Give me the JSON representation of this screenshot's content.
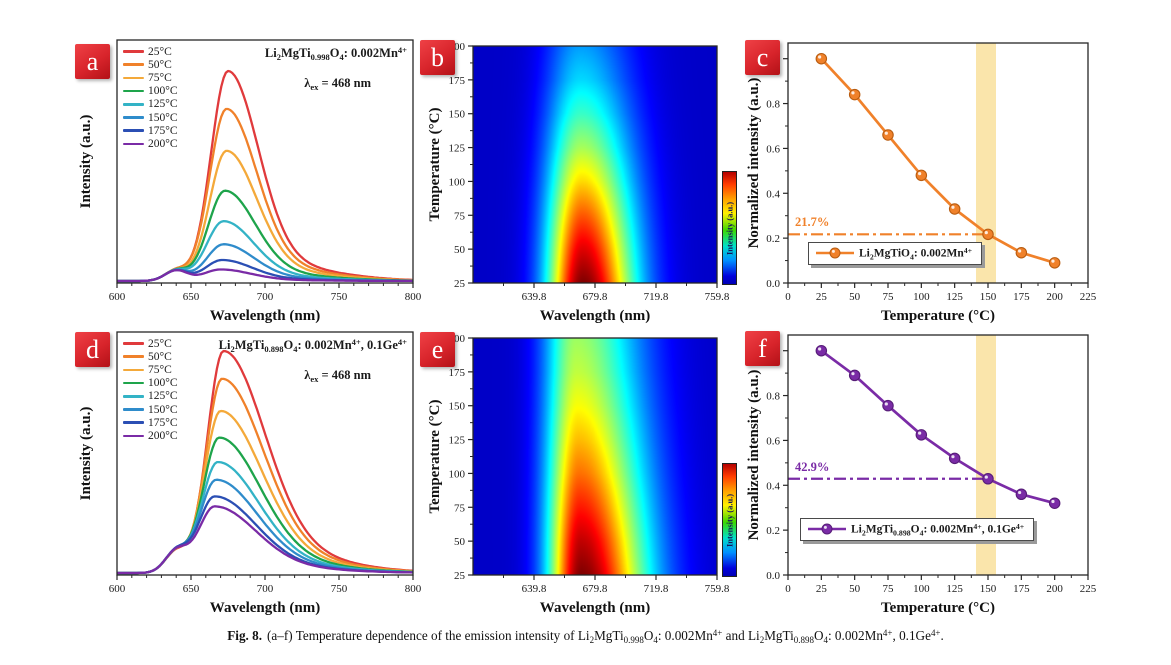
{
  "page": {
    "background": "#ffffff"
  },
  "caption": {
    "prefix": "Fig. 8.",
    "body": "(a–f) Temperature dependence of the emission intensity of Li~2~MgTi~0.998~O~4~: 0.002Mn^4+^ and Li~2~MgTi~0.898~O~4~: 0.002Mn^4+^, 0.1Ge^4+^."
  },
  "colors": {
    "panel_badge_red": "#d8242b",
    "accent_orange": "#f0812a",
    "accent_purple": "#7a2ba6",
    "highlight_band": "#fae5ab",
    "heatmap_background_blue": "#0000c8"
  },
  "chart_data": [
    {
      "id": "a",
      "type": "line",
      "panel_label": "a",
      "annotation_formula": "Li~2~MgTi~0.998~O~4~: 0.002Mn^4+^",
      "annotation_excitation": "λ~ex~ = 468 nm",
      "xlabel": "Wavelength (nm)",
      "ylabel": "Intensity (a.u.)",
      "xlim": [
        600,
        800
      ],
      "xticks": [
        600,
        650,
        700,
        750,
        800
      ],
      "series": [
        {
          "label": "25°C",
          "color": "#e03a3c",
          "peak_nm": 675,
          "rel_intensity": 1.0
        },
        {
          "label": "50°C",
          "color": "#f0812a",
          "peak_nm": 674,
          "rel_intensity": 0.82
        },
        {
          "label": "75°C",
          "color": "#f4a93a",
          "peak_nm": 674,
          "rel_intensity": 0.62
        },
        {
          "label": "100°C",
          "color": "#1ea44b",
          "peak_nm": 673,
          "rel_intensity": 0.43
        },
        {
          "label": "125°C",
          "color": "#33b3c6",
          "peak_nm": 672,
          "rel_intensity": 0.285
        },
        {
          "label": "150°C",
          "color": "#2f8ccb",
          "peak_nm": 672,
          "rel_intensity": 0.175
        },
        {
          "label": "175°C",
          "color": "#2b4fb4",
          "peak_nm": 671,
          "rel_intensity": 0.1
        },
        {
          "label": "200°C",
          "color": "#7a2ba6",
          "peak_nm": 670,
          "rel_intensity": 0.055
        }
      ]
    },
    {
      "id": "b",
      "type": "heatmap",
      "panel_label": "b",
      "xlabel": "Wavelength (nm)",
      "ylabel": "Temperature (°C)",
      "xlim": [
        599.8,
        759.8
      ],
      "xticks": [
        639.8,
        679.8,
        719.8,
        759.8
      ],
      "ylim": [
        25,
        200
      ],
      "yticks": [
        25,
        50,
        75,
        100,
        125,
        150,
        175,
        200
      ],
      "colorbar_label": "Intensity (a.u.)",
      "peak_center_nm": 672,
      "temperatures": [
        25,
        50,
        75,
        100,
        125,
        150,
        175,
        200
      ],
      "intensity_vs_temp": [
        1.0,
        0.84,
        0.66,
        0.48,
        0.33,
        0.217,
        0.135,
        0.09
      ]
    },
    {
      "id": "c",
      "type": "scatter-line",
      "panel_label": "c",
      "xlabel": "Temperature (°C)",
      "ylabel": "Normalized intensity (a.u.)",
      "xlim": [
        0,
        225
      ],
      "xticks": [
        0,
        25,
        50,
        75,
        100,
        125,
        150,
        175,
        200,
        225
      ],
      "ylim": [
        0.0,
        1.0
      ],
      "yticks": [
        0.0,
        0.2,
        0.4,
        0.6,
        0.8,
        1.0
      ],
      "color": "#f0812a",
      "color_dark": "#b85c10",
      "x": [
        25,
        50,
        75,
        100,
        125,
        150,
        175,
        200
      ],
      "y": [
        1.0,
        0.84,
        0.66,
        0.48,
        0.33,
        0.217,
        0.135,
        0.09
      ],
      "threshold_value": 0.217,
      "threshold_label": "21.7%",
      "highlight_band": [
        141,
        156
      ],
      "band_color": "#fae5ab",
      "legend_label": "Li~2~MgTiO~4~: 0.002Mn^4+^"
    },
    {
      "id": "d",
      "type": "line",
      "panel_label": "d",
      "annotation_formula": "Li~2~MgTi~0.898~O~4~: 0.002Mn^4+^, 0.1Ge^4+^",
      "annotation_excitation": "λ~ex~ = 468 nm",
      "xlabel": "Wavelength (nm)",
      "ylabel": "Intensity (a.u.)",
      "xlim": [
        600,
        800
      ],
      "xticks": [
        600,
        650,
        700,
        750,
        800
      ],
      "series": [
        {
          "label": "25°C",
          "color": "#e03a3c",
          "peak_nm": 672,
          "rel_intensity": 1.0
        },
        {
          "label": "50°C",
          "color": "#f0812a",
          "peak_nm": 671,
          "rel_intensity": 0.875
        },
        {
          "label": "75°C",
          "color": "#f4a93a",
          "peak_nm": 670,
          "rel_intensity": 0.73
        },
        {
          "label": "100°C",
          "color": "#1ea44b",
          "peak_nm": 669,
          "rel_intensity": 0.61
        },
        {
          "label": "125°C",
          "color": "#33b3c6",
          "peak_nm": 668,
          "rel_intensity": 0.5
        },
        {
          "label": "150°C",
          "color": "#2f8ccb",
          "peak_nm": 667,
          "rel_intensity": 0.42
        },
        {
          "label": "175°C",
          "color": "#2b4fb4",
          "peak_nm": 666,
          "rel_intensity": 0.345
        },
        {
          "label": "200°C",
          "color": "#7a2ba6",
          "peak_nm": 666,
          "rel_intensity": 0.3
        }
      ]
    },
    {
      "id": "e",
      "type": "heatmap",
      "panel_label": "e",
      "xlabel": "Wavelength (nm)",
      "ylabel": "Temperature (°C)",
      "xlim": [
        599.8,
        759.8
      ],
      "xticks": [
        639.8,
        679.8,
        719.8,
        759.8
      ],
      "ylim": [
        25,
        200
      ],
      "yticks": [
        25,
        50,
        75,
        100,
        125,
        150,
        175,
        200
      ],
      "colorbar_label": "Intensity (a.u.)",
      "peak_center_nm": 671,
      "temperatures": [
        25,
        50,
        75,
        100,
        125,
        150,
        175,
        200
      ],
      "intensity_vs_temp": [
        1.0,
        0.89,
        0.755,
        0.625,
        0.52,
        0.429,
        0.36,
        0.32
      ]
    },
    {
      "id": "f",
      "type": "scatter-line",
      "panel_label": "f",
      "xlabel": "Temperature (°C)",
      "ylabel": "Normalized intensity (a.u.)",
      "xlim": [
        0,
        225
      ],
      "xticks": [
        0,
        25,
        50,
        75,
        100,
        125,
        150,
        175,
        200,
        225
      ],
      "ylim": [
        0.0,
        1.0
      ],
      "yticks": [
        0.0,
        0.2,
        0.4,
        0.6,
        0.8,
        1.0
      ],
      "color": "#7a2ba6",
      "color_dark": "#571d78",
      "x": [
        25,
        50,
        75,
        100,
        125,
        150,
        175,
        200
      ],
      "y": [
        1.0,
        0.89,
        0.755,
        0.625,
        0.52,
        0.429,
        0.36,
        0.32
      ],
      "threshold_value": 0.429,
      "threshold_label": "42.9%",
      "highlight_band": [
        141,
        156
      ],
      "band_color": "#fae5ab",
      "legend_label": "Li~2~MgTi~0.898~O~4~: 0.002Mn^4+^, 0.1Ge^4+^"
    }
  ]
}
